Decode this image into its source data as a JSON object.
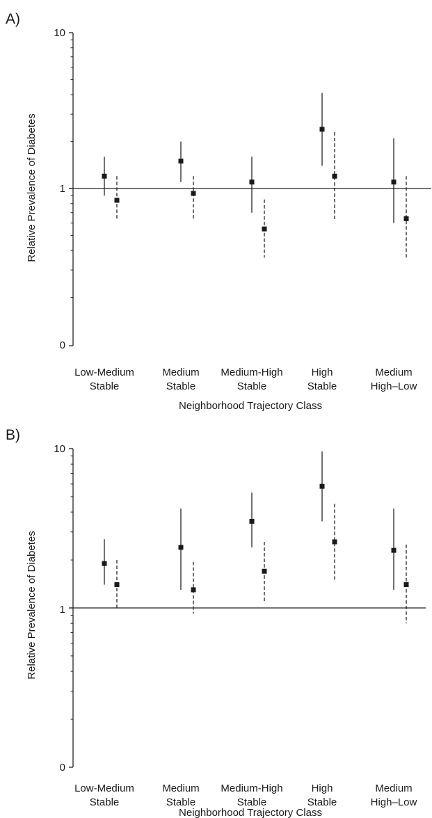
{
  "chart_data": [
    {
      "type": "scatter",
      "panel_label": "A)",
      "xlabel": "Neighborhood Trajectory Class",
      "ylabel": "Relative Prevalence of Diabetes",
      "y_scale": "log",
      "y_ticks": [
        "10",
        "1",
        "0"
      ],
      "categories": [
        [
          "Low-Medium",
          "Stable"
        ],
        [
          "Medium",
          "Stable"
        ],
        [
          "Medium-High",
          "Stable"
        ],
        [
          "High",
          "Stable"
        ],
        [
          "Medium",
          "High–Low"
        ]
      ],
      "reference_line": 1,
      "series": [
        {
          "line_style": "solid",
          "points": [
            {
              "est": 1.2,
              "lo": 0.9,
              "hi": 1.6
            },
            {
              "est": 1.5,
              "lo": 1.1,
              "hi": 2.0
            },
            {
              "est": 1.1,
              "lo": 0.7,
              "hi": 1.6
            },
            {
              "est": 2.4,
              "lo": 1.4,
              "hi": 4.1
            },
            {
              "est": 1.1,
              "lo": 0.6,
              "hi": 2.1
            }
          ]
        },
        {
          "line_style": "dashed",
          "points": [
            {
              "est": 0.84,
              "lo": 0.64,
              "hi": 1.2
            },
            {
              "est": 0.93,
              "lo": 0.64,
              "hi": 1.2
            },
            {
              "est": 0.55,
              "lo": 0.36,
              "hi": 0.85
            },
            {
              "est": 1.2,
              "lo": 0.63,
              "hi": 2.3
            },
            {
              "est": 0.64,
              "lo": 0.36,
              "hi": 1.2
            }
          ]
        }
      ]
    },
    {
      "type": "scatter",
      "panel_label": "B)",
      "xlabel": "Neighborhood Trajectory Class",
      "ylabel": "Relative Prevalence of Diabetes",
      "y_scale": "log",
      "y_ticks": [
        "10",
        "1",
        "0"
      ],
      "categories": [
        [
          "Low-Medium",
          "Stable"
        ],
        [
          "Medium",
          "Stable"
        ],
        [
          "Medium-High",
          "Stable"
        ],
        [
          "High",
          "Stable"
        ],
        [
          "Medium",
          "High–Low"
        ]
      ],
      "reference_line": 1,
      "series": [
        {
          "line_style": "solid",
          "points": [
            {
              "est": 1.9,
              "lo": 1.4,
              "hi": 2.7
            },
            {
              "est": 2.4,
              "lo": 1.3,
              "hi": 4.2
            },
            {
              "est": 3.5,
              "lo": 2.4,
              "hi": 5.3
            },
            {
              "est": 5.8,
              "lo": 3.5,
              "hi": 9.6
            },
            {
              "est": 2.3,
              "lo": 1.3,
              "hi": 4.2
            }
          ]
        },
        {
          "line_style": "dashed",
          "points": [
            {
              "est": 1.4,
              "lo": 1.0,
              "hi": 2.0
            },
            {
              "est": 1.3,
              "lo": 0.92,
              "hi": 1.95
            },
            {
              "est": 1.7,
              "lo": 1.1,
              "hi": 2.6
            },
            {
              "est": 2.6,
              "lo": 1.5,
              "hi": 4.5
            },
            {
              "est": 1.4,
              "lo": 0.8,
              "hi": 2.5
            }
          ]
        }
      ]
    }
  ]
}
